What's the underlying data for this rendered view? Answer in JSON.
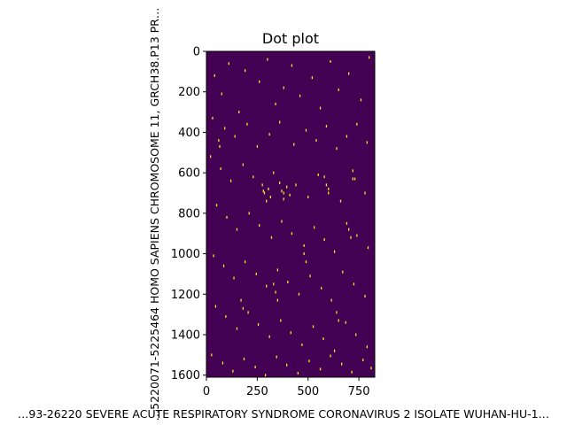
{
  "chart_data": {
    "type": "heatmap",
    "title": "Dot plot",
    "xlabel": "…93-26220 SEVERE ACUTE RESPIRATORY SYNDROME CORONAVIRUS 2 ISOLATE WUHAN-HU-1…",
    "ylabel": "…5220071-5225464 HOMO SAPIENS CHROMOSOME 11, GRCH38.P13 PR…",
    "xlim": [
      0,
      828
    ],
    "ylim": [
      1610,
      0
    ],
    "x_ticks": [
      "0",
      "250",
      "500",
      "750"
    ],
    "y_ticks": [
      "0",
      "200",
      "400",
      "600",
      "800",
      "1000",
      "1200",
      "1400",
      "1600"
    ],
    "background_color": "#440154",
    "dot_color": "#fde725",
    "grid": false,
    "legend": "none",
    "dots": [
      [
        40,
        120
      ],
      [
        75,
        210
      ],
      [
        110,
        60
      ],
      [
        160,
        300
      ],
      [
        190,
        95
      ],
      [
        260,
        150
      ],
      [
        300,
        40
      ],
      [
        340,
        260
      ],
      [
        380,
        180
      ],
      [
        420,
        70
      ],
      [
        460,
        220
      ],
      [
        520,
        130
      ],
      [
        560,
        280
      ],
      [
        610,
        50
      ],
      [
        650,
        190
      ],
      [
        700,
        110
      ],
      [
        760,
        240
      ],
      [
        800,
        30
      ],
      [
        30,
        330
      ],
      [
        90,
        380
      ],
      [
        140,
        420
      ],
      [
        200,
        360
      ],
      [
        250,
        470
      ],
      [
        310,
        410
      ],
      [
        360,
        350
      ],
      [
        430,
        460
      ],
      [
        490,
        390
      ],
      [
        540,
        440
      ],
      [
        590,
        370
      ],
      [
        640,
        480
      ],
      [
        690,
        420
      ],
      [
        740,
        360
      ],
      [
        790,
        450
      ],
      [
        20,
        520
      ],
      [
        70,
        580
      ],
      [
        120,
        640
      ],
      [
        180,
        560
      ],
      [
        230,
        620
      ],
      [
        280,
        690
      ],
      [
        330,
        600
      ],
      [
        380,
        700
      ],
      [
        440,
        660
      ],
      [
        500,
        720
      ],
      [
        550,
        610
      ],
      [
        600,
        680
      ],
      [
        660,
        740
      ],
      [
        720,
        630
      ],
      [
        780,
        700
      ],
      [
        50,
        760
      ],
      [
        100,
        820
      ],
      [
        150,
        880
      ],
      [
        210,
        800
      ],
      [
        260,
        860
      ],
      [
        320,
        920
      ],
      [
        370,
        840
      ],
      [
        420,
        900
      ],
      [
        480,
        960
      ],
      [
        530,
        870
      ],
      [
        580,
        930
      ],
      [
        630,
        990
      ],
      [
        690,
        850
      ],
      [
        740,
        910
      ],
      [
        795,
        970
      ],
      [
        35,
        1010
      ],
      [
        85,
        1060
      ],
      [
        135,
        1120
      ],
      [
        190,
        1040
      ],
      [
        245,
        1100
      ],
      [
        295,
        1160
      ],
      [
        350,
        1080
      ],
      [
        400,
        1140
      ],
      [
        455,
        1200
      ],
      [
        510,
        1110
      ],
      [
        565,
        1170
      ],
      [
        615,
        1230
      ],
      [
        670,
        1090
      ],
      [
        725,
        1150
      ],
      [
        780,
        1210
      ],
      [
        45,
        1260
      ],
      [
        95,
        1310
      ],
      [
        150,
        1370
      ],
      [
        205,
        1290
      ],
      [
        255,
        1350
      ],
      [
        310,
        1410
      ],
      [
        365,
        1330
      ],
      [
        415,
        1390
      ],
      [
        470,
        1450
      ],
      [
        525,
        1360
      ],
      [
        575,
        1420
      ],
      [
        630,
        1480
      ],
      [
        685,
        1340
      ],
      [
        735,
        1400
      ],
      [
        790,
        1460
      ],
      [
        25,
        1500
      ],
      [
        80,
        1540
      ],
      [
        130,
        1580
      ],
      [
        185,
        1520
      ],
      [
        240,
        1560
      ],
      [
        290,
        1600
      ],
      [
        345,
        1510
      ],
      [
        395,
        1550
      ],
      [
        450,
        1590
      ],
      [
        505,
        1530
      ],
      [
        560,
        1570
      ],
      [
        610,
        1505
      ],
      [
        665,
        1545
      ],
      [
        715,
        1585
      ],
      [
        770,
        1525
      ],
      [
        810,
        1565
      ],
      [
        275,
        660
      ],
      [
        285,
        700
      ],
      [
        295,
        740
      ],
      [
        305,
        680
      ],
      [
        315,
        720
      ],
      [
        360,
        650
      ],
      [
        370,
        690
      ],
      [
        380,
        730
      ],
      [
        395,
        670
      ],
      [
        410,
        710
      ],
      [
        330,
        1150
      ],
      [
        340,
        1190
      ],
      [
        350,
        1230
      ],
      [
        580,
        620
      ],
      [
        590,
        660
      ],
      [
        600,
        700
      ],
      [
        720,
        590
      ],
      [
        730,
        630
      ],
      [
        60,
        440
      ],
      [
        65,
        470
      ],
      [
        700,
        880
      ],
      [
        710,
        920
      ],
      [
        480,
        1000
      ],
      [
        490,
        1040
      ],
      [
        170,
        1230
      ],
      [
        180,
        1270
      ],
      [
        640,
        1290
      ],
      [
        650,
        1330
      ]
    ]
  }
}
